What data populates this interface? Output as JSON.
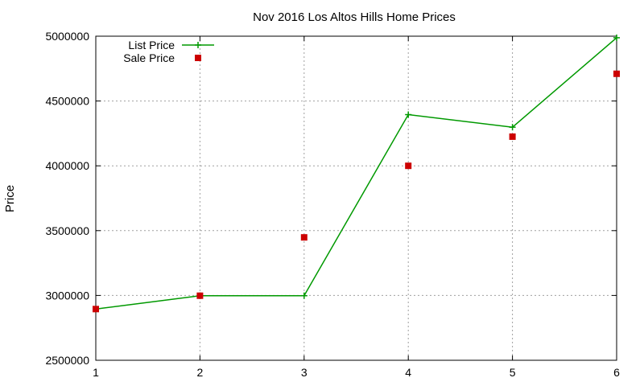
{
  "chart_data": {
    "type": "line",
    "title": "Nov 2016 Los Altos Hills Home Prices",
    "xlabel": "",
    "ylabel": "Price",
    "x": [
      1,
      2,
      3,
      4,
      5,
      6
    ],
    "xlim": [
      1,
      6
    ],
    "ylim": [
      2500000,
      5000000
    ],
    "x_ticks": [
      1,
      2,
      3,
      4,
      5,
      6
    ],
    "y_ticks": [
      2500000,
      3000000,
      3500000,
      4000000,
      4500000,
      5000000
    ],
    "grid": true,
    "legend_position": "top-left",
    "series": [
      {
        "name": "List Price",
        "style": "line-with-plus-markers",
        "color": "#009900",
        "values": [
          2895000,
          2998000,
          2998000,
          4395000,
          4298000,
          4988000
        ]
      },
      {
        "name": "Sale Price",
        "style": "square-points",
        "color": "#cc0000",
        "values": [
          2895000,
          2998000,
          3448000,
          4000000,
          4225000,
          4710000
        ]
      }
    ]
  }
}
